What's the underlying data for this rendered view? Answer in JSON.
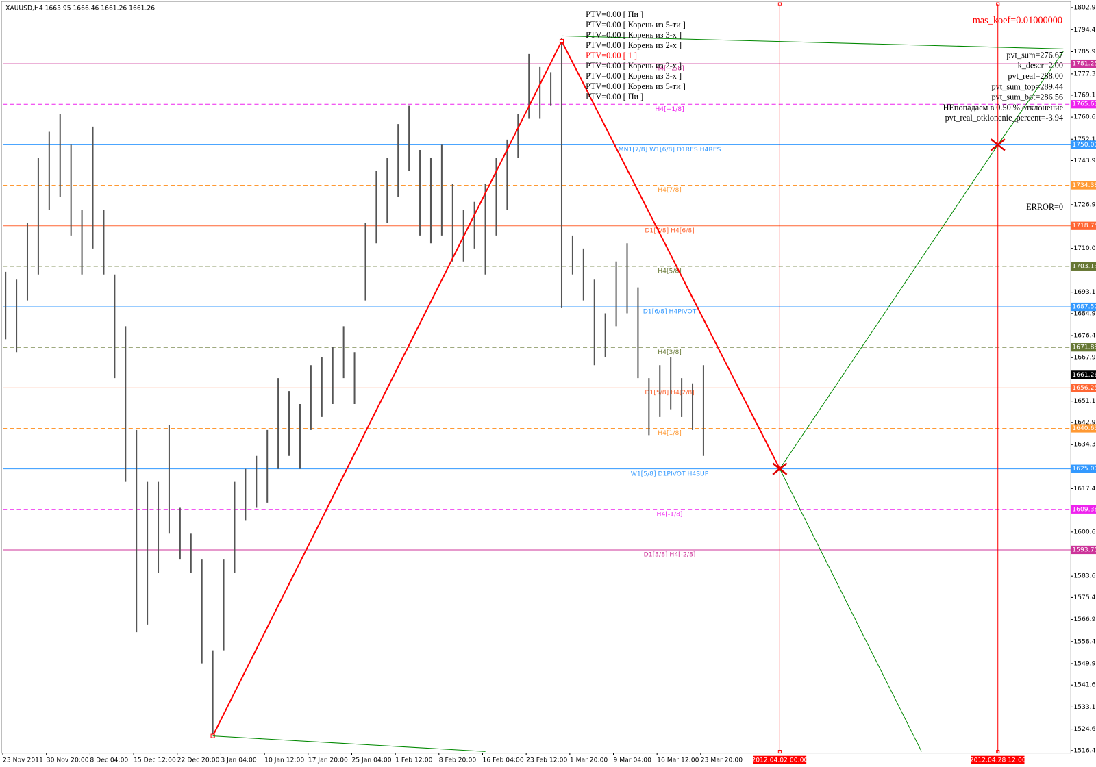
{
  "chart_data": {
    "type": "ohlc",
    "title": "XAUUSD,H4  1663.95 1666.46 1661.26 1661.26",
    "categories": [
      "23 Nov 2011",
      null,
      null,
      null,
      "30 Nov 20:00",
      null,
      null,
      null,
      "8 Dec 04:00",
      null,
      null,
      null,
      "15 Dec 12:00",
      null,
      null,
      null,
      "22 Dec 20:00",
      null,
      null,
      null,
      "3 Jan 04:00",
      null,
      null,
      null,
      "10 Jan 12:00",
      null,
      null,
      null,
      "17 Jan 20:00",
      null,
      null,
      null,
      "25 Jan 04:00",
      null,
      null,
      null,
      "1 Feb 12:00",
      null,
      null,
      null,
      "8 Feb 20:00",
      null,
      null,
      null,
      "16 Feb 04:00",
      null,
      null,
      null,
      "23 Feb 12:00",
      null,
      null,
      null,
      "1 Mar 20:00",
      null,
      null,
      null,
      "9 Mar 04:00",
      null,
      null,
      null,
      "16 Mar 12:00",
      null,
      null,
      null,
      "23 Mar 20:00",
      null,
      null,
      null,
      null,
      null,
      null,
      "2012.04.02 00:00",
      null,
      null,
      null,
      null,
      null,
      null,
      null,
      null,
      null,
      null,
      null,
      null,
      null,
      null,
      null,
      null,
      null,
      null,
      null,
      "2012.04.28 12:00",
      null,
      null,
      null,
      null,
      null,
      null
    ],
    "high": [
      1701,
      1698,
      1720,
      1745,
      1755,
      1762,
      1750,
      1725,
      1757,
      1725,
      1700,
      1680,
      1640,
      1620,
      1620,
      1642,
      1610,
      1600,
      1590,
      1555,
      1590,
      1620,
      1625,
      1630,
      1640,
      1660,
      1655,
      1650,
      1665,
      1668,
      1672,
      1680,
      1670,
      1720,
      1740,
      1745,
      1758,
      1765,
      1748,
      1745,
      1750,
      1735,
      1725,
      1728,
      1735,
      1745,
      1752,
      1762,
      1785,
      1780,
      1778,
      1791,
      1715,
      1710,
      1698,
      1685,
      1705,
      1712,
      1695,
      1660,
      1665,
      1668,
      1660,
      1658,
      1665,
      null,
      null,
      null,
      null,
      null,
      null,
      null,
      null,
      null,
      null,
      null,
      null,
      null,
      null,
      null,
      null,
      null,
      null,
      null,
      null,
      null,
      null,
      null,
      null,
      null,
      null,
      null,
      null,
      null,
      null,
      null,
      null,
      null
    ],
    "low": [
      1675,
      1670,
      1690,
      1700,
      1725,
      1730,
      1715,
      1700,
      1710,
      1700,
      1660,
      1620,
      1562,
      1565,
      1585,
      1600,
      1590,
      1585,
      1550,
      1522,
      1555,
      1585,
      1605,
      1610,
      1612,
      1625,
      1630,
      1625,
      1640,
      1645,
      1650,
      1660,
      1650,
      1690,
      1712,
      1720,
      1730,
      1740,
      1715,
      1712,
      1715,
      1705,
      1705,
      1710,
      1700,
      1715,
      1725,
      1745,
      1760,
      1760,
      1765,
      1687,
      1700,
      1690,
      1665,
      1668,
      1680,
      1685,
      1660,
      1638,
      1645,
      1648,
      1645,
      1640,
      1630,
      null,
      null,
      null,
      null,
      null,
      null,
      null,
      null,
      null,
      null,
      null,
      null,
      null,
      null,
      null,
      null,
      null,
      null,
      null,
      null,
      null,
      null,
      null,
      null,
      null,
      null,
      null,
      null,
      null,
      null,
      null,
      null,
      null
    ],
    "color": "#555555",
    "ylim": [
      1515.4,
      1805.3
    ],
    "yticks": [
      1802.95,
      {
        "value": 1794.4,
        "label": "1794.40"
      },
      {
        "value": 1785.9,
        "label": "1785.90"
      },
      1777.35,
      1769.15,
      1760.65,
      1752.15,
      {
        "value": 1743.9,
        "label": "1743.90"
      },
      {
        "value": 1726.9,
        "label": "1726.90"
      },
      1710.05,
      1693.15,
      {
        "value": 1684.9,
        "label": "1684.90"
      },
      {
        "value": 1676.4,
        "label": "1676.40"
      },
      {
        "value": 1667.9,
        "label": "1667.90"
      },
      1651.15,
      {
        "value": 1642.9,
        "label": "1642.90"
      },
      1634.35,
      {
        "value": 1617.4,
        "label": "1617.40"
      },
      1600.65,
      1583.65,
      {
        "value": 1575.4,
        "label": "1575.40"
      },
      {
        "value": 1566.9,
        "label": "1566.90"
      },
      {
        "value": 1558.4,
        "label": "1558.40"
      },
      {
        "value": 1549.9,
        "label": "1549.90"
      },
      1541.65,
      1533.15,
      1524.65,
      {
        "value": 1516.4,
        "label": "1516.40"
      }
    ],
    "levels": [
      {
        "price": 1781.25,
        "name": "H4[+2/8]",
        "color": "#cc3399",
        "dashed": false
      },
      {
        "price": 1765.63,
        "name": "H4[+1/8]",
        "color": "#ee22ee",
        "dashed": true
      },
      {
        "price": {
          "value": 1750,
          "label": "1750.00"
        },
        "name": "MN1[7/8] W1[6/8] D1RES H4RES",
        "color": "#3399ff",
        "dashed": false
      },
      {
        "price": 1734.38,
        "name": "H4[7/8]",
        "color": "#ff9933",
        "dashed": true
      },
      {
        "price": 1718.75,
        "name": "D1[7/8] H4[6/8]",
        "color": "#ff6633",
        "dashed": false
      },
      {
        "price": 1703.13,
        "name": "H4[5/8]",
        "color": "#667733",
        "dashed": true
      },
      {
        "price": {
          "value": 1687.5,
          "label": "1687.50"
        },
        "name": "D1[6/8] H4PIVOT",
        "color": "#3399ff",
        "dashed": false
      },
      {
        "price": 1671.88,
        "name": "H4[3/8]",
        "color": "#667733",
        "dashed": true
      },
      {
        "price": 1656.25,
        "name": "D1[5/8] H4[2/8]",
        "color": "#ff6633",
        "dashed": false
      },
      {
        "price": 1640.63,
        "name": "H4[1/8]",
        "color": "#ff9933",
        "dashed": true
      },
      {
        "price": {
          "value": 1625,
          "label": "1625.00"
        },
        "name": "W1[5/8] D1PIVOT H4SUP",
        "color": "#3399ff",
        "dashed": false
      },
      {
        "price": 1609.38,
        "name": "H4[-1/8]",
        "color": "#ee22ee",
        "dashed": true
      },
      {
        "price": 1593.75,
        "name": "D1[3/8] H4[-2/8]",
        "color": "#cc3399",
        "dashed": false
      }
    ],
    "current_price": 1661.26,
    "lines": [
      {
        "color": "#ff0000",
        "points": [
          [
            19,
            1522
          ],
          [
            51,
            1790
          ],
          [
            71,
            1625
          ]
        ]
      },
      {
        "color": "#008800",
        "points": [
          [
            71,
            1625
          ],
          [
            91,
            1750
          ],
          [
            97,
            1786
          ]
        ]
      },
      {
        "color": "#008800",
        "points": [
          [
            71,
            1625
          ],
          [
            84,
            1516
          ]
        ]
      },
      {
        "color": "#008800",
        "points": [
          [
            51,
            1792
          ],
          [
            97,
            1787
          ]
        ]
      },
      {
        "color": "#008800",
        "points": [
          [
            19,
            1522
          ],
          [
            44,
            1516
          ]
        ]
      }
    ],
    "markers": [
      [
        71,
        1625
      ],
      [
        91,
        1750
      ]
    ],
    "ptv_labels": [
      {
        "text": "PTV=0.00 [ Пи ]",
        "color": "#000000"
      },
      {
        "text": "PTV=0.00 [ Корень из 5-ти ]",
        "color": "#000000"
      },
      {
        "text": "PTV=0.00 [ Корень из 3-х ]",
        "color": "#000000"
      },
      {
        "text": "PTV=0.00 [ Корень из 2-х ]",
        "color": "#000000"
      },
      {
        "text": "PTV=0.00 [ 1 ]",
        "color": "#ff0000"
      },
      {
        "text": "PTV=0.00 [ Корень из 2-х ]",
        "color": "#000000"
      },
      {
        "text": "PTV=0.00 [ Корень из 3-х ]",
        "color": "#000000"
      },
      {
        "text": "PTV=0.00 [ Корень из 5-ти ]",
        "color": "#000000"
      },
      {
        "text": "PTV=0.00 [ Пи ]",
        "color": "#000000"
      }
    ],
    "stats": [
      "pvt_sum=276.67",
      "k_descr=2.00",
      "pvt_real=288.00",
      "pvt_sum_top=289.44",
      "pvt_sum_bot=286.56",
      "НЕпопадаем в 0.50 % отклонение",
      "pvt_real_otklonenie_percent=-3.94"
    ],
    "mas_koef": "mas_koef=0.01000000",
    "error": "ERROR=0"
  }
}
